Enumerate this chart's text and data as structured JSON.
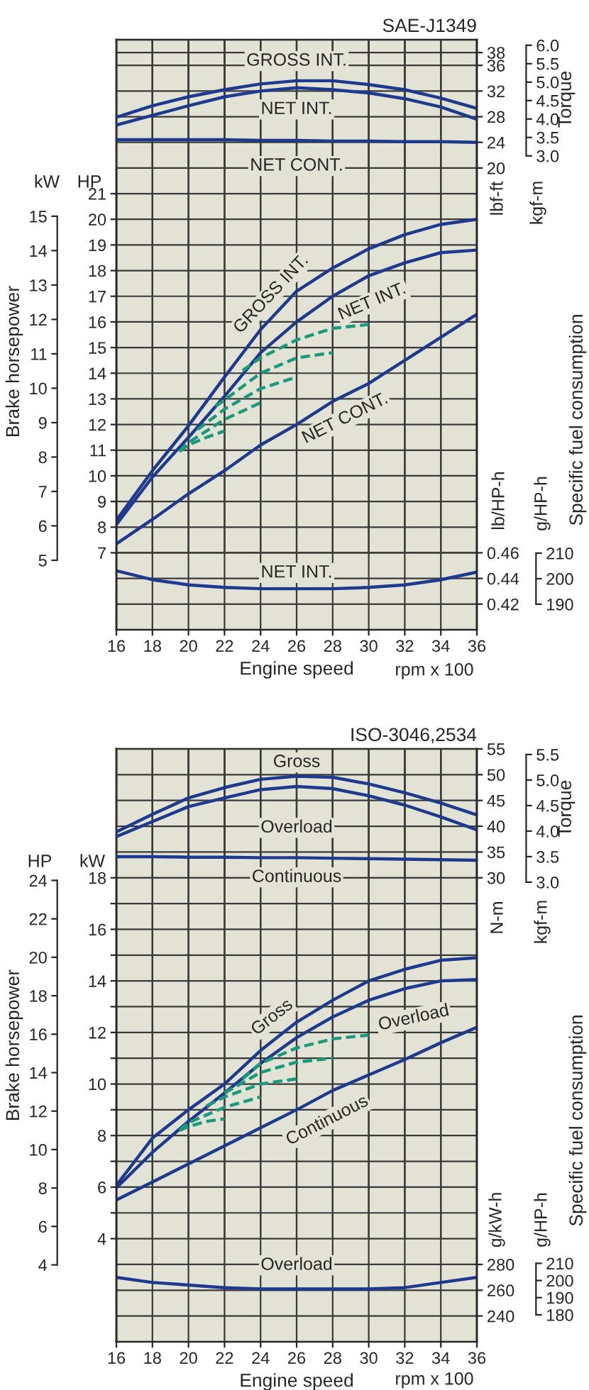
{
  "chart_data": [
    {
      "type": "line",
      "title": "SAE-J1349",
      "ylabel": "lbf-ft",
      "y2label": "kgf-m",
      "annotations": [
        "Torque"
      ],
      "x": [
        16,
        18,
        20,
        22,
        24,
        26,
        28,
        30,
        32,
        34,
        36
      ],
      "xlim": [
        16,
        36
      ],
      "xticks": [
        16,
        18,
        20,
        22,
        24,
        26,
        28,
        30,
        32,
        34,
        36
      ],
      "ylim": [
        -52,
        40
      ],
      "yticks": [
        20,
        24,
        28,
        32,
        36,
        38
      ],
      "y2lim": [
        -9.85,
        6.15
      ],
      "y2ticks": [
        {
          "value": 3,
          "label": "3.0"
        },
        3.5,
        {
          "value": 4,
          "label": "4.0"
        },
        4.5,
        {
          "value": 5,
          "label": "5.0"
        },
        5.5,
        {
          "value": 6,
          "label": "6.0"
        }
      ],
      "grid": true,
      "tick_labels": "y",
      "line_style": "solid",
      "series": [
        {
          "name": "GROSS INT.",
          "color": "#1d3a8f",
          "values": [
            27.9,
            29.7,
            31.1,
            32.2,
            33.1,
            33.6,
            33.6,
            33.0,
            32.2,
            30.9,
            29.3
          ]
        },
        {
          "name": "NET INT.",
          "color": "#1d3a8f",
          "values": [
            26.7,
            28.2,
            29.7,
            31.1,
            32.0,
            32.5,
            32.2,
            31.7,
            30.8,
            29.5,
            27.6
          ]
        },
        {
          "name": "NET CONT.",
          "color": "#1d3a8f",
          "values": [
            24.4,
            24.4,
            24.4,
            24.4,
            24.3,
            24.3,
            24.2,
            24.2,
            24.1,
            24.1,
            24.0
          ]
        }
      ]
    },
    {
      "type": "line",
      "ylabel": "HP",
      "y2label": "kW",
      "annotations": [
        "Brake horsepower"
      ],
      "x": [
        16,
        18,
        20,
        22,
        24,
        26,
        28,
        30,
        32,
        34,
        36
      ],
      "xlim": [
        16,
        36
      ],
      "xticks": [
        16,
        18,
        20,
        22,
        24,
        26,
        28,
        30,
        32,
        34,
        36
      ],
      "ylim": [
        4,
        27
      ],
      "yticks": [
        7,
        8,
        9,
        10,
        11,
        12,
        13,
        14,
        15,
        16,
        17,
        18,
        19,
        20,
        21
      ],
      "y2lim": [
        2.98,
        20.13
      ],
      "y2ticks": [
        5,
        6,
        7,
        8,
        9,
        10,
        11,
        12,
        13,
        14,
        15
      ],
      "grid": true,
      "tick_labels": "y",
      "line_style": "solid",
      "series": [
        {
          "name": "GROSS INT.",
          "color": "#1d3a8f",
          "values": [
            8.27,
            10.2,
            11.95,
            13.85,
            15.7,
            17.2,
            18.1,
            18.85,
            19.4,
            19.8,
            20.0
          ]
        },
        {
          "name": "NET INT.",
          "color": "#1d3a8f",
          "values": [
            8.1,
            9.95,
            11.5,
            13.1,
            14.8,
            16.0,
            17.0,
            17.8,
            18.3,
            18.7,
            18.8
          ]
        },
        {
          "name": "NET CONT.",
          "color": "#1d3a8f",
          "values": [
            7.35,
            8.3,
            9.3,
            10.2,
            11.2,
            12.0,
            12.9,
            13.6,
            14.5,
            15.4,
            16.3
          ]
        },
        {
          "color": "#1a9a7a",
          "line_style": "dashed",
          "x": [
            19.5,
            20,
            21,
            22
          ],
          "values": [
            10.95,
            11.2,
            11.5,
            11.75
          ]
        },
        {
          "color": "#1a9a7a",
          "line_style": "dashed",
          "x": [
            19.5,
            20,
            22,
            24
          ],
          "values": [
            10.95,
            11.3,
            12.2,
            12.85
          ]
        },
        {
          "color": "#1a9a7a",
          "line_style": "dashed",
          "x": [
            20.5,
            22,
            24,
            26
          ],
          "values": [
            11.8,
            12.6,
            13.4,
            13.85
          ]
        },
        {
          "color": "#1a9a7a",
          "line_style": "dashed",
          "x": [
            21.5,
            24,
            26,
            28
          ],
          "values": [
            12.7,
            14.0,
            14.6,
            14.8
          ]
        },
        {
          "color": "#1a9a7a",
          "line_style": "dashed",
          "x": [
            23,
            24,
            26,
            28,
            30
          ],
          "values": [
            14.1,
            14.6,
            15.3,
            15.75,
            15.9
          ]
        }
      ]
    },
    {
      "type": "line",
      "xlabel": "Engine speed",
      "ylabel": "lb/HP-h",
      "y2label": "g/HP-h",
      "annotations": [
        "Specific fuel consumption",
        "rpm x 100"
      ],
      "x": [
        16,
        18,
        20,
        22,
        24,
        26,
        28,
        30,
        32,
        34,
        36
      ],
      "xlim": [
        16,
        36
      ],
      "xticks": [
        16,
        18,
        20,
        22,
        24,
        26,
        28,
        30,
        32,
        34,
        36
      ],
      "ylim": [
        0.4,
        0.86
      ],
      "yticks": [
        0.42,
        0.44,
        0.46
      ],
      "y2lim": [
        180,
        411.1
      ],
      "y2ticks": [
        190,
        200,
        210
      ],
      "grid": true,
      "line_style": "solid",
      "series": [
        {
          "name": "NET INT.",
          "color": "#1d3a8f",
          "values": [
            0.446,
            0.439,
            0.435,
            0.433,
            0.432,
            0.432,
            0.432,
            0.433,
            0.435,
            0.439,
            0.445
          ]
        }
      ]
    },
    {
      "type": "line",
      "title": "ISO-3046,2534",
      "ylabel": "N-m",
      "y2label": "kgf-m",
      "annotations": [
        "Torque"
      ],
      "x": [
        16,
        18,
        20,
        22,
        24,
        26,
        28,
        30,
        32,
        34,
        36
      ],
      "xlim": [
        16,
        36
      ],
      "xticks": [
        16,
        18,
        20,
        22,
        24,
        26,
        28,
        30,
        32,
        34,
        36
      ],
      "ylim": [
        -60,
        55
      ],
      "yticks": [
        30,
        35,
        40,
        45,
        50,
        55
      ],
      "y2lim": [
        -6.0,
        5.61
      ],
      "y2ticks": [
        {
          "value": 3,
          "label": "3.0"
        },
        3.5,
        {
          "value": 4,
          "label": "4.0"
        },
        4.5,
        {
          "value": 5,
          "label": "5.0"
        },
        5.5
      ],
      "grid": true,
      "tick_labels": "y",
      "line_style": "solid",
      "series": [
        {
          "name": "Gross",
          "color": "#1d3a8f",
          "values": [
            38.9,
            42.3,
            45.5,
            47.5,
            49.1,
            49.7,
            49.5,
            48.2,
            46.5,
            44.5,
            42.2
          ]
        },
        {
          "name": "Overload",
          "color": "#1d3a8f",
          "values": [
            38.0,
            40.9,
            43.8,
            45.5,
            47.1,
            47.7,
            47.3,
            45.9,
            44.1,
            41.8,
            39.3
          ]
        },
        {
          "name": "Continuous",
          "color": "#1d3a8f",
          "values": [
            34.1,
            34.1,
            34.0,
            34.0,
            33.9,
            33.9,
            33.8,
            33.7,
            33.6,
            33.5,
            33.4
          ]
        }
      ]
    },
    {
      "type": "line",
      "ylabel": "kW",
      "y2label": "HP",
      "annotations": [
        "Brake horsepower"
      ],
      "x": [
        16,
        18,
        20,
        22,
        24,
        26,
        28,
        30,
        32,
        34,
        36
      ],
      "xlim": [
        16,
        36
      ],
      "xticks": [
        16,
        18,
        20,
        22,
        24,
        26,
        28,
        30,
        32,
        34,
        36
      ],
      "ylim": [
        0,
        23
      ],
      "yticks": [
        4,
        {
          "value": 5,
          "label": null
        },
        6,
        {
          "value": 7,
          "label": null
        },
        8,
        {
          "value": 9,
          "label": null
        },
        10,
        {
          "value": 11,
          "label": null
        },
        12,
        {
          "value": 13,
          "label": null
        },
        14,
        {
          "value": 15,
          "label": null
        },
        16,
        {
          "value": 17,
          "label": null
        },
        18
      ],
      "y2lim": [
        0,
        30.84
      ],
      "y2ticks": [
        4,
        6,
        8,
        10,
        12,
        14,
        16,
        18,
        20,
        22,
        24
      ],
      "grid": true,
      "tick_labels": "y",
      "line_style": "solid",
      "series": [
        {
          "name": "Gross",
          "color": "#1d3a8f",
          "values": [
            6.07,
            7.9,
            9.0,
            10.0,
            11.3,
            12.4,
            13.25,
            14.0,
            14.45,
            14.8,
            14.9
          ]
        },
        {
          "name": "Overload",
          "color": "#1d3a8f",
          "values": [
            5.97,
            7.35,
            8.55,
            9.65,
            10.8,
            11.8,
            12.6,
            13.25,
            13.7,
            14.0,
            14.05
          ]
        },
        {
          "name": "Continuous",
          "color": "#1d3a8f",
          "values": [
            5.5,
            6.2,
            6.9,
            7.6,
            8.3,
            9.0,
            9.75,
            10.35,
            10.95,
            11.6,
            12.2
          ]
        },
        {
          "color": "#1a9a7a",
          "line_style": "dashed",
          "x": [
            19.5,
            20,
            21,
            22
          ],
          "values": [
            8.2,
            8.35,
            8.55,
            8.65
          ]
        },
        {
          "color": "#1a9a7a",
          "line_style": "dashed",
          "x": [
            19.5,
            20,
            22,
            24
          ],
          "values": [
            8.2,
            8.5,
            9.1,
            9.5
          ]
        },
        {
          "color": "#1a9a7a",
          "line_style": "dashed",
          "x": [
            21,
            22,
            24,
            26
          ],
          "values": [
            9.15,
            9.5,
            10.0,
            10.2
          ]
        },
        {
          "color": "#1a9a7a",
          "line_style": "dashed",
          "x": [
            22,
            24,
            26,
            28
          ],
          "values": [
            9.65,
            10.45,
            10.85,
            11.0
          ]
        },
        {
          "color": "#1a9a7a",
          "line_style": "dashed",
          "x": [
            23,
            24,
            26,
            28,
            30
          ],
          "values": [
            10.2,
            10.8,
            11.4,
            11.75,
            11.9
          ]
        }
      ]
    },
    {
      "type": "line",
      "xlabel": "Engine speed",
      "ylabel": "g/kW-h",
      "y2label": "g/HP-h",
      "annotations": [
        "Specific fuel consumption",
        "rpm x 100"
      ],
      "x": [
        16,
        18,
        20,
        22,
        24,
        26,
        28,
        30,
        32,
        34,
        36
      ],
      "xlim": [
        16,
        36
      ],
      "xticks": [
        16,
        18,
        20,
        22,
        24,
        26,
        28,
        30,
        32,
        34,
        36
      ],
      "ylim": [
        220,
        680
      ],
      "yticks": [
        240,
        260,
        280
      ],
      "y2lim": [
        164.3,
        509.6
      ],
      "y2ticks": [
        180,
        190,
        200,
        210
      ],
      "grid": true,
      "line_style": "solid",
      "series": [
        {
          "name": "Overload",
          "color": "#1d3a8f",
          "values": [
            270,
            266,
            264,
            262,
            261,
            261,
            261,
            261,
            262,
            266,
            270
          ]
        }
      ]
    }
  ]
}
